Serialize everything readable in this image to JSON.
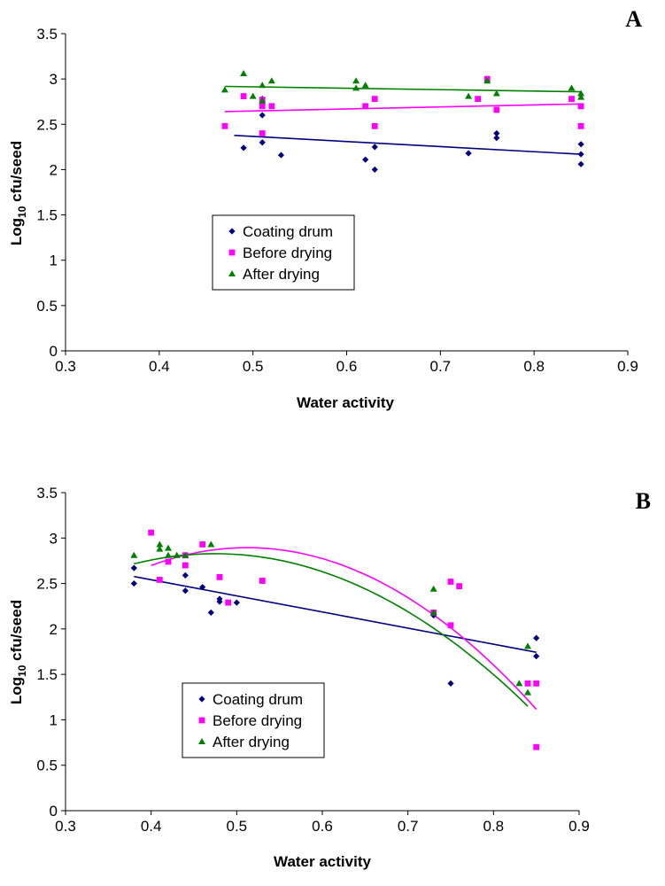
{
  "chart_data": [
    {
      "type": "scatter",
      "panel_label": "A",
      "xlabel": "Water activity",
      "ylabel_main": "Log",
      "ylabel_sub": "10",
      "ylabel_rest": " cfu/seed",
      "xlim": [
        0.3,
        0.9
      ],
      "ylim": [
        0,
        3.5
      ],
      "x_ticks": [
        "0.3",
        "0.4",
        "0.5",
        "0.6",
        "0.7",
        "0.8",
        "0.9"
      ],
      "y_ticks": [
        "0",
        "0.5",
        "1",
        "1.5",
        "2",
        "2.5",
        "3",
        "3.5"
      ],
      "legend_position": "middle-left",
      "series": [
        {
          "name": "Coating drum",
          "color": "#000080",
          "marker": "diamond",
          "x": [
            0.49,
            0.51,
            0.51,
            0.51,
            0.53,
            0.62,
            0.63,
            0.63,
            0.73,
            0.76,
            0.76,
            0.85,
            0.85,
            0.85
          ],
          "y": [
            2.24,
            2.3,
            2.6,
            2.78,
            2.16,
            2.11,
            2.0,
            2.25,
            2.18,
            2.35,
            2.4,
            2.06,
            2.17,
            2.28
          ],
          "trend": {
            "kind": "linear",
            "coef": [
              2.647,
              -0.562
            ],
            "range": [
              0.48,
              0.85
            ]
          }
        },
        {
          "name": "Before drying",
          "color": "#ff00ff",
          "marker": "square",
          "x": [
            0.47,
            0.49,
            0.51,
            0.51,
            0.51,
            0.52,
            0.62,
            0.63,
            0.63,
            0.74,
            0.75,
            0.76,
            0.84,
            0.85,
            0.85
          ],
          "y": [
            2.48,
            2.81,
            2.4,
            2.7,
            2.77,
            2.7,
            2.7,
            2.48,
            2.78,
            2.78,
            3.0,
            2.66,
            2.78,
            2.48,
            2.7
          ],
          "trend": {
            "kind": "linear",
            "coef": [
              2.536,
              0.222
            ],
            "range": [
              0.47,
              0.85
            ]
          }
        },
        {
          "name": "After drying",
          "color": "#008000",
          "marker": "triangle",
          "x": [
            0.47,
            0.49,
            0.5,
            0.51,
            0.51,
            0.52,
            0.61,
            0.61,
            0.62,
            0.73,
            0.75,
            0.76,
            0.84,
            0.85,
            0.85
          ],
          "y": [
            2.88,
            3.06,
            2.81,
            2.76,
            2.93,
            2.98,
            2.9,
            2.98,
            2.93,
            2.81,
            2.98,
            2.84,
            2.9,
            2.8,
            2.84
          ],
          "trend": {
            "kind": "linear",
            "coef": [
              2.993,
              -0.158
            ],
            "range": [
              0.47,
              0.85
            ]
          }
        }
      ]
    },
    {
      "type": "scatter",
      "panel_label": "B",
      "xlabel": "Water activity",
      "ylabel_main": "Log",
      "ylabel_sub": "10",
      "ylabel_rest": " cfu/seed",
      "xlim": [
        0.3,
        0.9
      ],
      "ylim": [
        0,
        3.5
      ],
      "x_ticks": [
        "0.3",
        "0.4",
        "0.5",
        "0.6",
        "0.7",
        "0.8",
        "0.9"
      ],
      "y_ticks": [
        "0",
        "0.5",
        "1",
        "1.5",
        "2",
        "2.5",
        "3",
        "3.5"
      ],
      "legend_position": "lower-left",
      "series": [
        {
          "name": "Coating drum",
          "color": "#000080",
          "marker": "diamond",
          "x": [
            0.38,
            0.38,
            0.44,
            0.44,
            0.46,
            0.47,
            0.48,
            0.48,
            0.5,
            0.73,
            0.75,
            0.85,
            0.85
          ],
          "y": [
            2.5,
            2.67,
            2.42,
            2.59,
            2.46,
            2.18,
            2.3,
            2.33,
            2.29,
            2.15,
            1.4,
            1.7,
            1.9
          ],
          "trend": {
            "kind": "linear",
            "coef": [
              3.251,
              -1.774
            ],
            "range": [
              0.38,
              0.85
            ]
          }
        },
        {
          "name": "Before drying",
          "color": "#ff00ff",
          "marker": "square",
          "x": [
            0.4,
            0.41,
            0.42,
            0.44,
            0.44,
            0.46,
            0.48,
            0.49,
            0.53,
            0.73,
            0.75,
            0.75,
            0.76,
            0.84,
            0.85,
            0.85
          ],
          "y": [
            3.06,
            2.54,
            2.74,
            2.7,
            2.81,
            2.93,
            2.57,
            2.29,
            2.53,
            2.18,
            2.52,
            2.04,
            2.47,
            1.4,
            1.4,
            0.7
          ],
          "trend": {
            "kind": "quadratic",
            "coef": [
              -1.2,
              15.984,
              -15.6
            ],
            "range": [
              0.4,
              0.85
            ]
          }
        },
        {
          "name": "After drying",
          "color": "#008000",
          "marker": "triangle",
          "x": [
            0.38,
            0.41,
            0.41,
            0.42,
            0.42,
            0.43,
            0.44,
            0.47,
            0.73,
            0.73,
            0.83,
            0.84,
            0.84
          ],
          "y": [
            2.81,
            2.88,
            2.93,
            2.81,
            2.89,
            2.81,
            2.81,
            2.93,
            2.44,
            2.18,
            1.4,
            1.3,
            1.81
          ],
          "trend": {
            "kind": "quadratic",
            "coef": [
              0.0,
              11.92,
              -12.56
            ],
            "range": [
              0.38,
              0.84
            ]
          }
        }
      ]
    }
  ]
}
